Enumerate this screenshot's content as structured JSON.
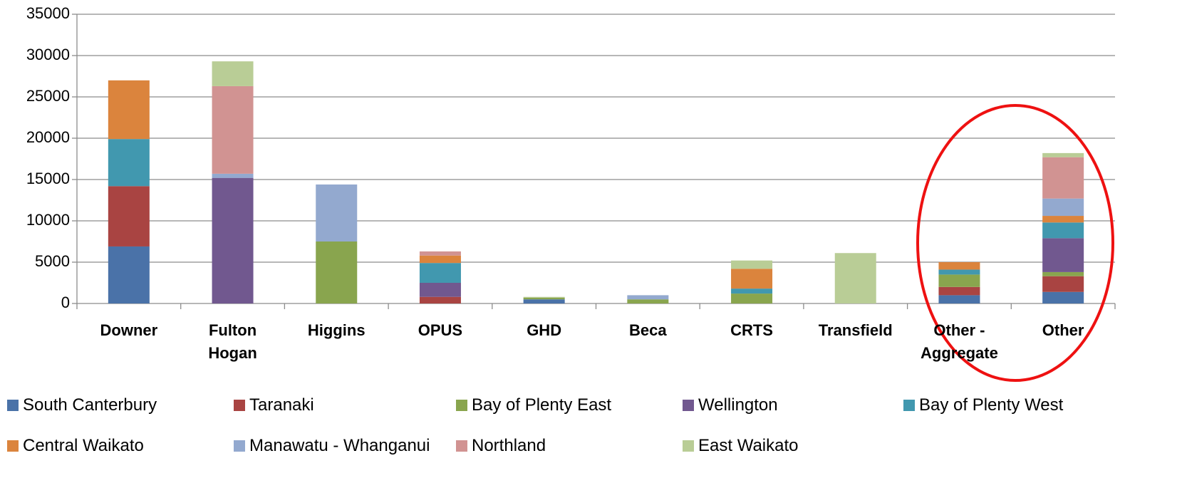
{
  "chart_data": {
    "type": "bar",
    "stacked": true,
    "categories": [
      "Downer",
      "Fulton Hogan",
      "Higgins",
      "OPUS",
      "GHD",
      "Beca",
      "CRTS",
      "Transfield",
      "Other - Aggregate",
      "Other"
    ],
    "series": [
      {
        "name": "South Canterbury",
        "color": "#4a72a8",
        "values": [
          6900,
          0,
          0,
          0,
          500,
          0,
          0,
          0,
          1000,
          1400
        ]
      },
      {
        "name": "Taranaki",
        "color": "#a94442",
        "values": [
          7300,
          0,
          0,
          800,
          0,
          0,
          0,
          0,
          1000,
          1900
        ]
      },
      {
        "name": "Bay of Plenty East",
        "color": "#89a54e",
        "values": [
          0,
          0,
          7500,
          0,
          200,
          500,
          1200,
          0,
          1500,
          500
        ]
      },
      {
        "name": "Wellington",
        "color": "#71588f",
        "values": [
          0,
          15200,
          0,
          1700,
          0,
          0,
          0,
          0,
          0,
          4100
        ]
      },
      {
        "name": "Bay of Plenty West",
        "color": "#4198af",
        "values": [
          5700,
          0,
          0,
          2400,
          0,
          0,
          600,
          0,
          600,
          1900
        ]
      },
      {
        "name": "Central Waikato",
        "color": "#db843d",
        "values": [
          7100,
          0,
          0,
          900,
          0,
          0,
          2400,
          0,
          900,
          800
        ]
      },
      {
        "name": "Manawatu - Whanganui",
        "color": "#93a9cf",
        "values": [
          0,
          500,
          6900,
          0,
          0,
          500,
          0,
          0,
          0,
          2100
        ]
      },
      {
        "name": "Northland",
        "color": "#d19392",
        "values": [
          0,
          10600,
          0,
          500,
          0,
          0,
          0,
          0,
          0,
          5000
        ]
      },
      {
        "name": "East Waikato",
        "color": "#b9cd96",
        "values": [
          0,
          3000,
          0,
          0,
          100,
          0,
          1000,
          6100,
          0,
          500
        ]
      }
    ],
    "ylim": [
      0,
      35000
    ],
    "yticks": [
      0,
      5000,
      10000,
      15000,
      20000,
      25000,
      30000,
      35000
    ],
    "grid": true,
    "legend": "bottom"
  }
}
